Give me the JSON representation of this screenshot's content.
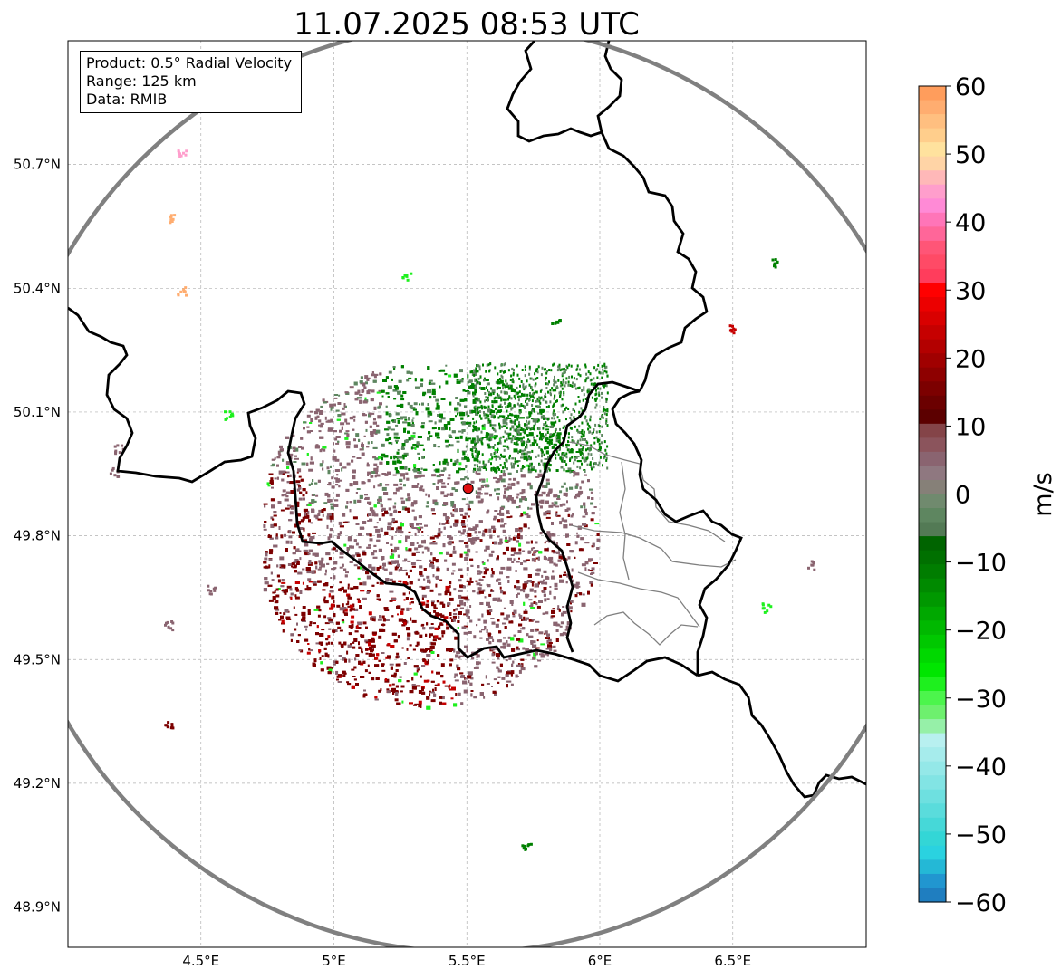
{
  "title": "11.07.2025 08:53 UTC",
  "info": {
    "product": "Product: 0.5° Radial Velocity",
    "range": "Range: 125 km",
    "data": "Data: RMIB"
  },
  "map": {
    "lon_range": [
      4.0,
      7.0
    ],
    "lat_range": [
      48.8,
      51.0
    ],
    "lon_ticks": [
      {
        "value": 4.5,
        "label": "4.5°E"
      },
      {
        "value": 5.0,
        "label": "5°E"
      },
      {
        "value": 5.5,
        "label": "5.5°E"
      },
      {
        "value": 6.0,
        "label": "6°E"
      },
      {
        "value": 6.5,
        "label": "6.5°E"
      }
    ],
    "lat_ticks": [
      {
        "value": 50.7,
        "label": "50.7°N"
      },
      {
        "value": 50.4,
        "label": "50.4°N"
      },
      {
        "value": 50.1,
        "label": "50.1°N"
      },
      {
        "value": 49.8,
        "label": "49.8°N"
      },
      {
        "value": 49.5,
        "label": "49.5°N"
      },
      {
        "value": 49.2,
        "label": "49.2°N"
      },
      {
        "value": 48.9,
        "label": "48.9°N"
      }
    ],
    "radar_site": {
      "lon": 5.505,
      "lat": 49.915
    },
    "range_ring_km": 125,
    "grid": true
  },
  "colorbar": {
    "label": "m/s",
    "min": -60,
    "max": 60,
    "ticks": [
      60,
      50,
      40,
      30,
      20,
      10,
      0,
      -10,
      -20,
      -30,
      -40,
      -50,
      -60
    ],
    "tick_labels": [
      "60",
      "50",
      "40",
      "30",
      "20",
      "10",
      "0",
      "−10",
      "−20",
      "−30",
      "−40",
      "−50",
      "−60"
    ],
    "colors_top_to_bottom": [
      "#ff9d5c",
      "#ffad70",
      "#ffbf80",
      "#ffce8c",
      "#ffe29e",
      "#ffd4a6",
      "#ffb8b8",
      "#ff9ecc",
      "#ff8ad6",
      "#ff75b8",
      "#ff6699",
      "#ff5577",
      "#ff4a66",
      "#ff3d5c",
      "#ff0000",
      "#ec0000",
      "#d90000",
      "#c60000",
      "#b30000",
      "#a00000",
      "#8e0000",
      "#7c0000",
      "#6b0000",
      "#5c0000",
      "#844448",
      "#8b545c",
      "#8a6470",
      "#8f7880",
      "#868078",
      "#708a6e",
      "#5e8660",
      "#537a55",
      "#006400",
      "#007000",
      "#007d00",
      "#008a00",
      "#009800",
      "#00a800",
      "#00b800",
      "#00c800",
      "#00d800",
      "#00e600",
      "#1ef01e",
      "#4cf54c",
      "#6ef06e",
      "#96f0a8",
      "#b8f0f0",
      "#a6ecec",
      "#94e8e8",
      "#82e4e4",
      "#6ee0e0",
      "#5adcdc",
      "#46d8d8",
      "#33d6d6",
      "#2ad2e0",
      "#24b8d6",
      "#2196d0",
      "#1f7ec0"
    ]
  },
  "echo_colors": {
    "inbound_strong": "#008000",
    "inbound": "#5e8660",
    "neutral": "#8a6470",
    "outbound": "#7c0000",
    "outbound_strong": "#c60000",
    "fast_green": "#1ef01e",
    "site_marker": "#e01010"
  }
}
